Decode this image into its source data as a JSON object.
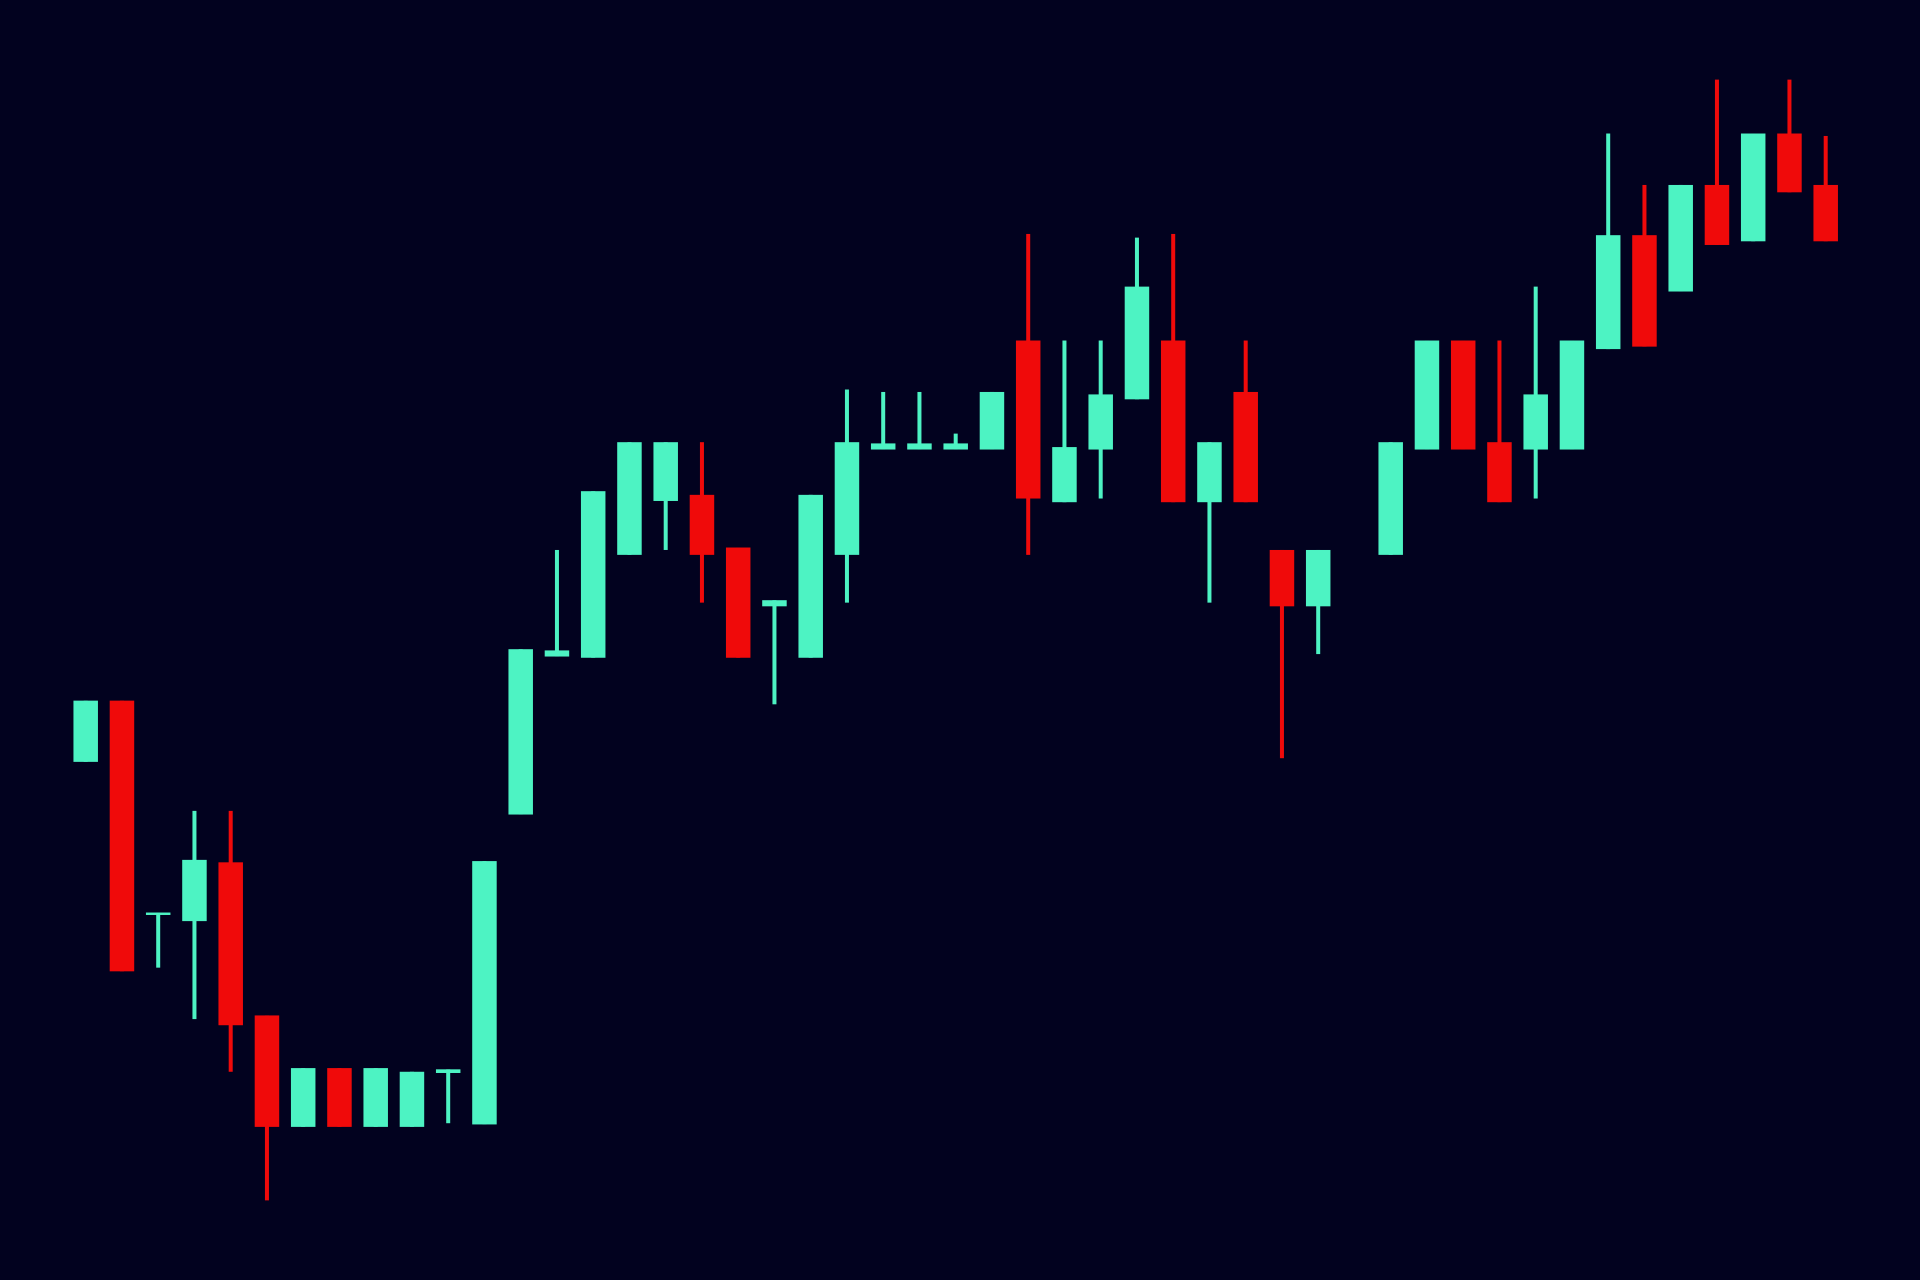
{
  "chart_data": {
    "type": "candlestick",
    "up_color": "#4df3c3",
    "down_color": "#f00a0a",
    "background": "#02021f",
    "ylim": [
      0,
      1045
    ],
    "open": [
      423,
      473,
      298,
      293,
      341,
      216,
      125,
      173,
      125,
      125,
      169,
      127,
      380,
      509,
      508,
      592,
      636,
      641,
      598,
      550,
      508,
      592,
      678,
      678,
      678,
      678,
      767,
      635,
      678,
      719,
      767,
      635,
      725,
      596,
      550,
      null,
      592,
      678,
      767,
      684,
      678,
      678,
      760,
      853,
      807,
      894,
      848,
      936,
      894
    ],
    "high": [
      473,
      473,
      300,
      383,
      383,
      216,
      173,
      173,
      173,
      170,
      172,
      342,
      515,
      596,
      644,
      684,
      684,
      684,
      598,
      555,
      641,
      727,
      725,
      725,
      691,
      725,
      854,
      767,
      767,
      851,
      854,
      684,
      767,
      596,
      596,
      null,
      684,
      767,
      767,
      767,
      811,
      767,
      936,
      894,
      894,
      980,
      936,
      980,
      934
    ],
    "low": [
      423,
      252,
      255,
      213,
      170,
      65,
      125,
      125,
      125,
      125,
      128,
      127,
      380,
      509,
      508,
      592,
      596,
      553,
      508,
      470,
      508,
      553,
      678,
      678,
      678,
      678,
      592,
      635,
      638,
      719,
      635,
      553,
      635,
      426,
      511,
      null,
      592,
      678,
      678,
      635,
      638,
      678,
      760,
      762,
      807,
      845,
      848,
      888,
      848
    ],
    "close": [
      473,
      252,
      300,
      343,
      208,
      125,
      173,
      125,
      173,
      170,
      172,
      342,
      515,
      514,
      644,
      684,
      684,
      592,
      508,
      555,
      641,
      684,
      683,
      683,
      683,
      725,
      638,
      680,
      723,
      811,
      635,
      684,
      635,
      550,
      596,
      null,
      684,
      767,
      678,
      635,
      723,
      767,
      853,
      762,
      894,
      845,
      936,
      888,
      848
    ]
  }
}
